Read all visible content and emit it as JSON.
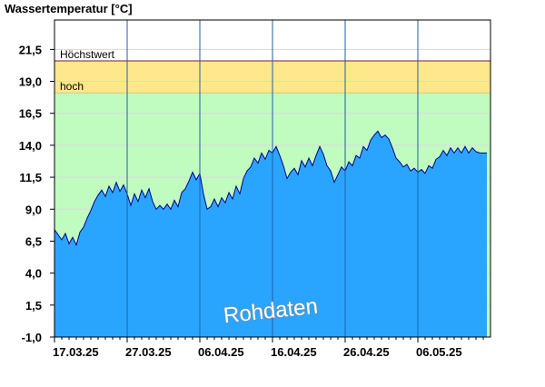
{
  "chart_data": {
    "type": "area",
    "title": "Wassertemperatur [°C]",
    "ylabel": "Wassertemperatur [°C]",
    "xlabel": "",
    "ylim": [
      -1.0,
      23.8
    ],
    "y_ticks": [
      "21,5",
      "19,0",
      "16,5",
      "14,0",
      "11,5",
      "9,0",
      "6,5",
      "4,0",
      "1,5",
      "-1,0"
    ],
    "y_tick_values": [
      21.5,
      19.0,
      16.5,
      14.0,
      11.5,
      9.0,
      6.5,
      4.0,
      1.5,
      -1.0
    ],
    "x_ticks": [
      "17.03.25",
      "27.03.25",
      "06.04.25",
      "16.04.25",
      "26.04.25",
      "06.05.25"
    ],
    "x_tick_days": [
      0,
      10,
      20,
      30,
      40,
      50
    ],
    "xlim_days": [
      0,
      60
    ],
    "data_end_day": 59.5,
    "thresholds": [
      {
        "label": "Höchstwert",
        "value": 20.6,
        "color": "#7a1a3a"
      },
      {
        "label": "hoch",
        "value": 18.1,
        "color": "#d4c97a"
      }
    ],
    "zones": [
      {
        "name": "above-max",
        "from": 20.6,
        "to": 23.8,
        "color": "#ffffff"
      },
      {
        "name": "high",
        "from": 18.1,
        "to": 20.6,
        "color": "#ffe78c"
      },
      {
        "name": "normal",
        "from": -1.0,
        "to": 18.1,
        "color": "#c0fcc0"
      }
    ],
    "series": [
      {
        "fill_color": "#2aa5ff",
        "line_color": "#00008b",
        "points": [
          [
            0,
            7.4
          ],
          [
            0.5,
            7.0
          ],
          [
            1,
            6.6
          ],
          [
            1.5,
            7.1
          ],
          [
            2,
            6.3
          ],
          [
            2.5,
            6.8
          ],
          [
            3,
            6.2
          ],
          [
            3.5,
            7.2
          ],
          [
            4,
            7.6
          ],
          [
            4.5,
            8.3
          ],
          [
            5,
            8.9
          ],
          [
            5.5,
            9.6
          ],
          [
            6,
            10.1
          ],
          [
            6.5,
            10.5
          ],
          [
            7,
            10.0
          ],
          [
            7.5,
            10.8
          ],
          [
            8,
            10.3
          ],
          [
            8.5,
            11.1
          ],
          [
            9,
            10.4
          ],
          [
            9.5,
            10.9
          ],
          [
            10,
            10.2
          ],
          [
            10.5,
            9.3
          ],
          [
            11,
            10.2
          ],
          [
            11.5,
            9.6
          ],
          [
            12,
            10.5
          ],
          [
            12.5,
            9.9
          ],
          [
            13,
            10.6
          ],
          [
            13.5,
            9.6
          ],
          [
            14,
            9.0
          ],
          [
            14.5,
            9.3
          ],
          [
            15,
            9.0
          ],
          [
            15.5,
            9.4
          ],
          [
            16,
            9.0
          ],
          [
            16.5,
            9.7
          ],
          [
            17,
            9.2
          ],
          [
            17.5,
            10.3
          ],
          [
            18,
            10.6
          ],
          [
            18.5,
            11.2
          ],
          [
            19,
            11.9
          ],
          [
            19.5,
            11.3
          ],
          [
            20,
            11.8
          ],
          [
            20.5,
            10.2
          ],
          [
            21,
            9.0
          ],
          [
            21.5,
            9.2
          ],
          [
            22,
            9.8
          ],
          [
            22.5,
            9.2
          ],
          [
            23,
            9.9
          ],
          [
            23.5,
            9.5
          ],
          [
            24,
            10.3
          ],
          [
            24.5,
            9.8
          ],
          [
            25,
            10.8
          ],
          [
            25.5,
            10.2
          ],
          [
            26,
            11.4
          ],
          [
            26.5,
            12.0
          ],
          [
            27,
            12.3
          ],
          [
            27.5,
            13.0
          ],
          [
            28,
            12.6
          ],
          [
            28.5,
            13.4
          ],
          [
            29,
            12.9
          ],
          [
            29.5,
            13.6
          ],
          [
            30,
            13.4
          ],
          [
            30.5,
            13.9
          ],
          [
            31,
            13.2
          ],
          [
            31.5,
            12.4
          ],
          [
            32,
            11.4
          ],
          [
            32.5,
            11.9
          ],
          [
            33,
            12.2
          ],
          [
            33.5,
            11.7
          ],
          [
            34,
            12.8
          ],
          [
            34.5,
            12.3
          ],
          [
            35,
            13.0
          ],
          [
            35.5,
            12.4
          ],
          [
            36,
            13.2
          ],
          [
            36.5,
            13.9
          ],
          [
            37,
            13.3
          ],
          [
            37.5,
            12.4
          ],
          [
            38,
            12.0
          ],
          [
            38.5,
            11.1
          ],
          [
            39,
            11.7
          ],
          [
            39.5,
            12.3
          ],
          [
            40,
            12.0
          ],
          [
            40.5,
            12.7
          ],
          [
            41,
            12.4
          ],
          [
            41.5,
            13.2
          ],
          [
            42,
            13.0
          ],
          [
            42.5,
            13.9
          ],
          [
            43,
            13.6
          ],
          [
            43.5,
            14.4
          ],
          [
            44,
            14.8
          ],
          [
            44.5,
            15.1
          ],
          [
            45,
            14.6
          ],
          [
            45.5,
            14.8
          ],
          [
            46,
            14.5
          ],
          [
            46.5,
            13.8
          ],
          [
            47,
            13.0
          ],
          [
            47.5,
            12.7
          ],
          [
            48,
            12.3
          ],
          [
            48.5,
            12.5
          ],
          [
            49,
            12.0
          ],
          [
            49.5,
            12.2
          ],
          [
            50,
            11.9
          ],
          [
            50.5,
            12.1
          ],
          [
            51,
            11.8
          ],
          [
            51.5,
            12.4
          ],
          [
            52,
            12.2
          ],
          [
            52.5,
            12.9
          ],
          [
            53,
            13.1
          ],
          [
            53.5,
            13.6
          ],
          [
            54,
            13.2
          ],
          [
            54.5,
            13.8
          ],
          [
            55,
            13.4
          ],
          [
            55.5,
            13.8
          ],
          [
            56,
            13.4
          ],
          [
            56.5,
            13.9
          ],
          [
            57,
            13.4
          ],
          [
            57.5,
            13.8
          ],
          [
            58,
            13.5
          ],
          [
            58.5,
            13.4
          ],
          [
            59.5,
            13.4
          ]
        ]
      }
    ],
    "annotation": "Rohdaten",
    "grid": true,
    "legend": "none"
  }
}
